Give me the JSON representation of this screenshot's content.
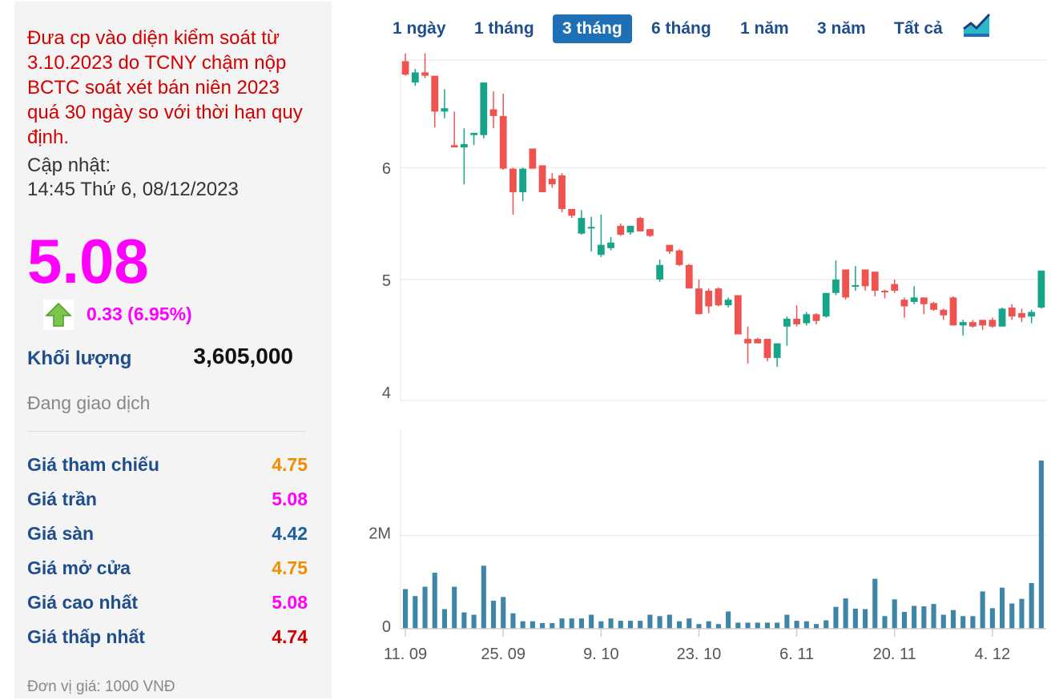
{
  "info": {
    "notice": "Đưa cp vào diện kiểm soát từ 3.10.2023 do TCNY chậm nộp BCTC soát xét bán niên 2023 quá 30 ngày so với thời hạn quy định.",
    "updated_label": "Cập nhật:",
    "updated_time": "14:45 Thứ 6, 08/12/2023",
    "price": "5.08",
    "change": "0.33 (6.95%)",
    "trend_icon": "up-arrow-icon",
    "volume_label": "Khối lượng",
    "volume_value": "3,605,000",
    "status": "Đang giao dịch",
    "unit": "Đơn vị giá: 1000 VNĐ"
  },
  "stats": [
    {
      "label": "Giá tham chiếu",
      "value": "4.75",
      "color": "#f28c00"
    },
    {
      "label": "Giá trần",
      "value": "5.08",
      "color": "#ff00ff"
    },
    {
      "label": "Giá sàn",
      "value": "4.42",
      "color": "#1a5f9e"
    },
    {
      "label": "Giá mở cửa",
      "value": "4.75",
      "color": "#f28c00"
    },
    {
      "label": "Giá cao nhất",
      "value": "5.08",
      "color": "#ff00ff"
    },
    {
      "label": "Giá thấp nhất",
      "value": "4.74",
      "color": "#cc0000"
    }
  ],
  "ranges": [
    {
      "label": "1 ngày",
      "active": false
    },
    {
      "label": "1 tháng",
      "active": false
    },
    {
      "label": "3 tháng",
      "active": true
    },
    {
      "label": "6 tháng",
      "active": false
    },
    {
      "label": "1 năm",
      "active": false
    },
    {
      "label": "3 năm",
      "active": false
    },
    {
      "label": "Tất cả",
      "active": false
    }
  ],
  "chart_type_icon": "area-chart-icon",
  "colors": {
    "up": "#17a589",
    "down": "#ef5350",
    "volume": "#3d86a8",
    "active_range": "#1f6fb5"
  },
  "chart_data": {
    "type": "candlestick",
    "x_tick_labels": [
      "11. 09",
      "25. 09",
      "9. 10",
      "23. 10",
      "6. 11",
      "20. 11",
      "4. 12"
    ],
    "price_axis": {
      "ticks": [
        "4",
        "5",
        "6"
      ],
      "range": [
        3.92,
        6.96
      ]
    },
    "volume_axis": {
      "ticks": [
        "0",
        "2M"
      ],
      "range": [
        0,
        4000000
      ]
    },
    "grid": true,
    "candles": [
      {
        "o": 6.95,
        "h": 7.02,
        "l": 6.82,
        "c": 6.83
      },
      {
        "o": 6.76,
        "h": 6.88,
        "l": 6.73,
        "c": 6.85
      },
      {
        "o": 6.85,
        "h": 7.02,
        "l": 6.8,
        "c": 6.82
      },
      {
        "o": 6.82,
        "h": 6.82,
        "l": 6.36,
        "c": 6.5
      },
      {
        "o": 6.5,
        "h": 6.7,
        "l": 6.44,
        "c": 6.53
      },
      {
        "o": 6.2,
        "h": 6.5,
        "l": 6.18,
        "c": 6.18
      },
      {
        "o": 6.18,
        "h": 6.35,
        "l": 5.85,
        "c": 6.21
      },
      {
        "o": 6.29,
        "h": 6.31,
        "l": 6.2,
        "c": 6.31
      },
      {
        "o": 6.29,
        "h": 6.76,
        "l": 6.26,
        "c": 6.76
      },
      {
        "o": 6.52,
        "h": 6.68,
        "l": 6.35,
        "c": 6.46
      },
      {
        "o": 6.46,
        "h": 6.66,
        "l": 5.98,
        "c": 5.99
      },
      {
        "o": 5.99,
        "h": 6.0,
        "l": 5.58,
        "c": 5.78
      },
      {
        "o": 5.78,
        "h": 6.0,
        "l": 5.7,
        "c": 5.99
      },
      {
        "o": 6.17,
        "h": 6.17,
        "l": 5.99,
        "c": 5.99
      },
      {
        "o": 6.02,
        "h": 6.02,
        "l": 5.78,
        "c": 5.78
      },
      {
        "o": 5.9,
        "h": 5.95,
        "l": 5.82,
        "c": 5.85
      },
      {
        "o": 5.93,
        "h": 5.95,
        "l": 5.6,
        "c": 5.63
      },
      {
        "o": 5.63,
        "h": 5.63,
        "l": 5.55,
        "c": 5.57
      },
      {
        "o": 5.41,
        "h": 5.62,
        "l": 5.4,
        "c": 5.55
      },
      {
        "o": 5.47,
        "h": 5.56,
        "l": 5.25,
        "c": 5.47
      },
      {
        "o": 5.22,
        "h": 5.58,
        "l": 5.2,
        "c": 5.31
      },
      {
        "o": 5.28,
        "h": 5.38,
        "l": 5.26,
        "c": 5.33
      },
      {
        "o": 5.48,
        "h": 5.5,
        "l": 5.39,
        "c": 5.4
      },
      {
        "o": 5.42,
        "h": 5.48,
        "l": 5.4,
        "c": 5.48
      },
      {
        "o": 5.55,
        "h": 5.56,
        "l": 5.43,
        "c": 5.43
      },
      {
        "o": 5.45,
        "h": 5.45,
        "l": 5.38,
        "c": 5.39
      },
      {
        "o": 5.0,
        "h": 5.18,
        "l": 4.98,
        "c": 5.13
      },
      {
        "o": 5.31,
        "h": 5.31,
        "l": 5.23,
        "c": 5.25
      },
      {
        "o": 5.26,
        "h": 5.27,
        "l": 5.12,
        "c": 5.13
      },
      {
        "o": 5.13,
        "h": 5.14,
        "l": 4.92,
        "c": 4.92
      },
      {
        "o": 4.92,
        "h": 5.0,
        "l": 4.69,
        "c": 4.69
      },
      {
        "o": 4.9,
        "h": 4.92,
        "l": 4.7,
        "c": 4.76
      },
      {
        "o": 4.92,
        "h": 4.93,
        "l": 4.76,
        "c": 4.77
      },
      {
        "o": 4.77,
        "h": 4.84,
        "l": 4.75,
        "c": 4.82
      },
      {
        "o": 4.86,
        "h": 4.86,
        "l": 4.51,
        "c": 4.51
      },
      {
        "o": 4.47,
        "h": 4.58,
        "l": 4.25,
        "c": 4.43
      },
      {
        "o": 4.47,
        "h": 4.48,
        "l": 4.43,
        "c": 4.43
      },
      {
        "o": 4.47,
        "h": 4.47,
        "l": 4.27,
        "c": 4.3
      },
      {
        "o": 4.3,
        "h": 4.43,
        "l": 4.22,
        "c": 4.43
      },
      {
        "o": 4.58,
        "h": 4.67,
        "l": 4.41,
        "c": 4.65
      },
      {
        "o": 4.65,
        "h": 4.77,
        "l": 4.58,
        "c": 4.6
      },
      {
        "o": 4.61,
        "h": 4.71,
        "l": 4.59,
        "c": 4.69
      },
      {
        "o": 4.69,
        "h": 4.7,
        "l": 4.6,
        "c": 4.63
      },
      {
        "o": 4.67,
        "h": 4.88,
        "l": 4.66,
        "c": 4.88
      },
      {
        "o": 4.88,
        "h": 5.17,
        "l": 4.86,
        "c": 5.0
      },
      {
        "o": 5.09,
        "h": 5.09,
        "l": 4.82,
        "c": 4.84
      },
      {
        "o": 4.95,
        "h": 5.12,
        "l": 4.9,
        "c": 4.95
      },
      {
        "o": 5.09,
        "h": 5.09,
        "l": 4.9,
        "c": 4.94
      },
      {
        "o": 5.07,
        "h": 5.07,
        "l": 4.85,
        "c": 4.9
      },
      {
        "o": 4.9,
        "h": 4.91,
        "l": 4.83,
        "c": 4.89
      },
      {
        "o": 4.96,
        "h": 5.0,
        "l": 4.88,
        "c": 4.9
      },
      {
        "o": 4.82,
        "h": 4.84,
        "l": 4.66,
        "c": 4.76
      },
      {
        "o": 4.8,
        "h": 4.94,
        "l": 4.78,
        "c": 4.84
      },
      {
        "o": 4.84,
        "h": 4.84,
        "l": 4.69,
        "c": 4.78
      },
      {
        "o": 4.79,
        "h": 4.8,
        "l": 4.72,
        "c": 4.73
      },
      {
        "o": 4.73,
        "h": 4.74,
        "l": 4.64,
        "c": 4.68
      },
      {
        "o": 4.84,
        "h": 4.85,
        "l": 4.59,
        "c": 4.59
      },
      {
        "o": 4.59,
        "h": 4.64,
        "l": 4.5,
        "c": 4.62
      },
      {
        "o": 4.62,
        "h": 4.64,
        "l": 4.57,
        "c": 4.58
      },
      {
        "o": 4.64,
        "h": 4.64,
        "l": 4.55,
        "c": 4.59
      },
      {
        "o": 4.64,
        "h": 4.66,
        "l": 4.57,
        "c": 4.58
      },
      {
        "o": 4.58,
        "h": 4.75,
        "l": 4.58,
        "c": 4.74
      },
      {
        "o": 4.75,
        "h": 4.78,
        "l": 4.64,
        "c": 4.67
      },
      {
        "o": 4.7,
        "h": 4.74,
        "l": 4.62,
        "c": 4.66
      },
      {
        "o": 4.67,
        "h": 4.73,
        "l": 4.61,
        "c": 4.71
      },
      {
        "o": 4.75,
        "h": 5.08,
        "l": 4.74,
        "c": 5.08
      }
    ],
    "volumes": [
      850000,
      700000,
      900000,
      1200000,
      420000,
      900000,
      350000,
      300000,
      1350000,
      600000,
      680000,
      330000,
      160000,
      160000,
      120000,
      120000,
      220000,
      220000,
      220000,
      300000,
      160000,
      220000,
      170000,
      170000,
      170000,
      300000,
      270000,
      300000,
      160000,
      220000,
      100000,
      160000,
      100000,
      370000,
      130000,
      130000,
      130000,
      130000,
      130000,
      300000,
      170000,
      160000,
      100000,
      180000,
      470000,
      650000,
      430000,
      420000,
      1070000,
      270000,
      630000,
      360000,
      490000,
      480000,
      530000,
      300000,
      400000,
      270000,
      270000,
      800000,
      440000,
      880000,
      540000,
      640000,
      980000,
      3605000
    ]
  }
}
